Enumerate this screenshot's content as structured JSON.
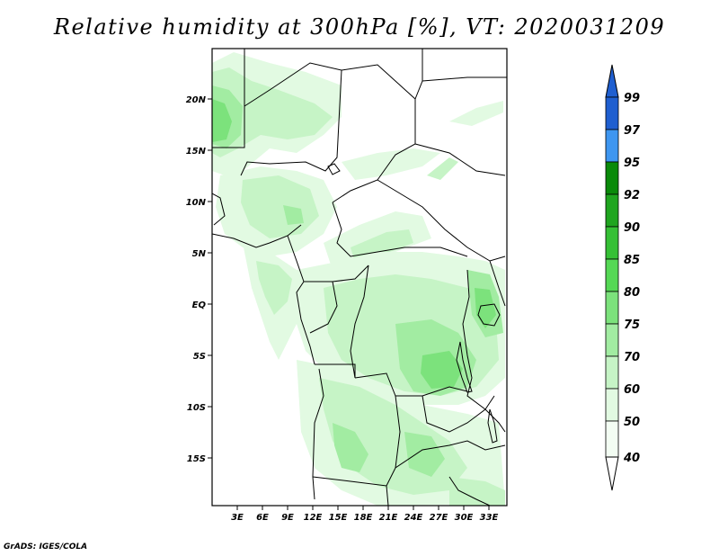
{
  "title": "Relative humidity at 300hPa [%], VT: 2020031209",
  "credit": "GrADS: IGES/COLA",
  "map": {
    "lat_labels": [
      "20N",
      "15N",
      "10N",
      "5N",
      "EQ",
      "5S",
      "10S",
      "15S"
    ],
    "lon_labels": [
      "3E",
      "6E",
      "9E",
      "12E",
      "15E",
      "18E",
      "21E",
      "24E",
      "27E",
      "30E",
      "33E"
    ]
  },
  "colorbar": {
    "labels": [
      "99",
      "97",
      "95",
      "92",
      "90",
      "85",
      "80",
      "75",
      "70",
      "60",
      "50",
      "40"
    ],
    "colors": [
      "#1f5fd0",
      "#2a78e0",
      "#3e96f0",
      "#0a8a0a",
      "#1fa51f",
      "#35c035",
      "#55d855",
      "#7ce27c",
      "#a2eca2",
      "#c6f4c6",
      "#e2fae2",
      "#f3fdf3"
    ]
  },
  "palette": {
    "lightest": "#f3fdf3",
    "light": "#e2fae2",
    "medium": "#c6f4c6",
    "mid": "#a2eca2",
    "strong": "#7ce27c"
  }
}
